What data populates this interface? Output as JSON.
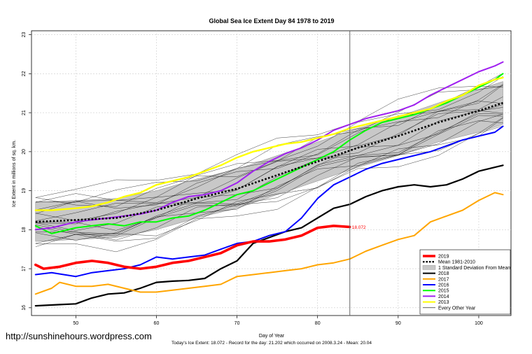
{
  "watermark": "http://sunshinehours.wordpress.com",
  "chart_data": {
    "type": "line",
    "title": "Global Sea Ice Extent Day 84 1978 to 2019",
    "xlabel": "Day of Year",
    "ylabel": "Ice Extent in millions of sq. km.",
    "subtitle": "Today's Ice Extent: 18.072  - Record for the day: 21.202 which occurred on 2008.3.24  - Mean: 20.04",
    "xlim": [
      44.5,
      104
    ],
    "ylim": [
      15.8,
      23.1
    ],
    "xticks": [
      50,
      60,
      70,
      80,
      90,
      100
    ],
    "yticks": [
      16,
      17,
      18,
      19,
      20,
      21,
      22,
      23
    ],
    "grid": true,
    "today_line_x": 84,
    "annotation": {
      "x": 84,
      "y": 18.07,
      "text": "18.072",
      "color": "#ff0000"
    },
    "legend_position": "bottom-right",
    "legend": [
      {
        "label": "2019",
        "color": "#ff0000",
        "style": "thick"
      },
      {
        "label": "Mean 1981-2010",
        "color": "#000000",
        "style": "dotted"
      },
      {
        "label": "1 Standard Deviation From Mean",
        "color": "#c8c8c8",
        "style": "band"
      },
      {
        "label": "2018",
        "color": "#000000",
        "style": "solid"
      },
      {
        "label": "2017",
        "color": "#ffa500",
        "style": "solid"
      },
      {
        "label": "2016",
        "color": "#0000ff",
        "style": "solid"
      },
      {
        "label": "2015",
        "color": "#00ff00",
        "style": "solid"
      },
      {
        "label": "2014",
        "color": "#a020f0",
        "style": "solid"
      },
      {
        "label": "2013",
        "color": "#ffff00",
        "style": "solid"
      },
      {
        "label": "Every Other Year",
        "color": "#000000",
        "style": "thin"
      }
    ],
    "mean": {
      "x": [
        45,
        50,
        55,
        60,
        65,
        70,
        75,
        80,
        85,
        90,
        95,
        100,
        103
      ],
      "y": [
        18.2,
        18.25,
        18.3,
        18.5,
        18.8,
        19.05,
        19.4,
        19.75,
        20.1,
        20.4,
        20.75,
        21.05,
        21.25
      ]
    },
    "std_band": {
      "x": [
        45,
        50,
        55,
        60,
        65,
        70,
        75,
        80,
        85,
        90,
        95,
        100,
        103
      ],
      "upper": [
        18.7,
        18.75,
        18.8,
        19.0,
        19.3,
        19.55,
        19.9,
        20.25,
        20.6,
        20.9,
        21.25,
        21.6,
        21.8
      ],
      "lower": [
        17.7,
        17.75,
        17.8,
        18.0,
        18.3,
        18.55,
        18.9,
        19.25,
        19.6,
        19.9,
        20.25,
        20.5,
        20.7
      ]
    },
    "series": [
      {
        "name": "2018",
        "color": "#000000",
        "width": 2.2,
        "x": [
          45,
          48,
          50,
          52,
          54,
          56,
          58,
          60,
          62,
          64,
          66,
          68,
          70,
          72,
          74,
          76,
          78,
          80,
          82,
          84,
          86,
          88,
          90,
          92,
          94,
          96,
          98,
          100,
          102,
          103
        ],
        "y": [
          16.05,
          16.08,
          16.1,
          16.25,
          16.35,
          16.38,
          16.5,
          16.65,
          16.68,
          16.7,
          16.75,
          17.0,
          17.2,
          17.65,
          17.8,
          17.95,
          18.05,
          18.3,
          18.55,
          18.65,
          18.85,
          19.0,
          19.1,
          19.15,
          19.1,
          19.15,
          19.3,
          19.5,
          19.6,
          19.65
        ]
      },
      {
        "name": "2017",
        "color": "#ffa500",
        "width": 2.0,
        "x": [
          45,
          47,
          48,
          50,
          52,
          54,
          56,
          58,
          60,
          62,
          64,
          66,
          68,
          70,
          72,
          74,
          76,
          78,
          80,
          82,
          84,
          86,
          88,
          90,
          92,
          94,
          96,
          98,
          100,
          102,
          103
        ],
        "y": [
          16.35,
          16.5,
          16.65,
          16.55,
          16.55,
          16.6,
          16.5,
          16.4,
          16.4,
          16.45,
          16.5,
          16.55,
          16.6,
          16.8,
          16.85,
          16.9,
          16.95,
          17.0,
          17.1,
          17.15,
          17.25,
          17.45,
          17.6,
          17.75,
          17.85,
          18.2,
          18.35,
          18.5,
          18.75,
          18.95,
          18.9
        ]
      },
      {
        "name": "2016",
        "color": "#0000ff",
        "width": 2.0,
        "x": [
          45,
          47,
          50,
          52,
          54,
          56,
          58,
          60,
          62,
          64,
          66,
          68,
          70,
          72,
          74,
          76,
          78,
          80,
          82,
          84,
          86,
          88,
          90,
          92,
          94,
          96,
          98,
          100,
          102,
          103
        ],
        "y": [
          16.85,
          16.9,
          16.8,
          16.9,
          16.95,
          17.0,
          17.1,
          17.3,
          17.25,
          17.3,
          17.35,
          17.5,
          17.65,
          17.7,
          17.85,
          17.95,
          18.3,
          18.8,
          19.15,
          19.35,
          19.55,
          19.7,
          19.8,
          19.9,
          20.0,
          20.15,
          20.3,
          20.4,
          20.5,
          20.65
        ]
      },
      {
        "name": "2015",
        "color": "#00ff00",
        "width": 2.0,
        "x": [
          45,
          47,
          50,
          52,
          54,
          56,
          58,
          60,
          62,
          64,
          66,
          68,
          70,
          72,
          74,
          76,
          78,
          80,
          82,
          84,
          86,
          88,
          90,
          92,
          94,
          96,
          98,
          100,
          102,
          103
        ],
        "y": [
          18.1,
          17.9,
          18.05,
          18.1,
          18.15,
          18.1,
          18.2,
          18.2,
          18.3,
          18.35,
          18.5,
          18.7,
          18.9,
          19.0,
          19.2,
          19.4,
          19.6,
          19.8,
          20.0,
          20.3,
          20.55,
          20.75,
          20.85,
          20.95,
          21.1,
          21.25,
          21.45,
          21.65,
          21.85,
          22.0
        ]
      },
      {
        "name": "2014",
        "color": "#a020f0",
        "width": 2.0,
        "x": [
          45,
          47,
          50,
          52,
          54,
          56,
          58,
          60,
          62,
          64,
          66,
          68,
          70,
          72,
          74,
          76,
          78,
          80,
          82,
          84,
          86,
          88,
          90,
          92,
          94,
          96,
          98,
          100,
          102,
          103
        ],
        "y": [
          18.0,
          18.05,
          18.2,
          18.25,
          18.3,
          18.35,
          18.4,
          18.5,
          18.7,
          18.85,
          18.9,
          19.0,
          19.2,
          19.5,
          19.75,
          19.95,
          20.1,
          20.3,
          20.55,
          20.7,
          20.85,
          20.95,
          21.05,
          21.2,
          21.45,
          21.65,
          21.85,
          22.05,
          22.2,
          22.3
        ]
      },
      {
        "name": "2013",
        "color": "#ffff00",
        "width": 2.4,
        "x": [
          45,
          47,
          50,
          52,
          54,
          56,
          58,
          60,
          62,
          64,
          66,
          68,
          70,
          72,
          74,
          76,
          78,
          80,
          82,
          84,
          86,
          88,
          90,
          92,
          94,
          96,
          98,
          100,
          102,
          103
        ],
        "y": [
          18.5,
          18.5,
          18.55,
          18.6,
          18.7,
          18.85,
          18.95,
          19.15,
          19.25,
          19.35,
          19.5,
          19.65,
          19.85,
          20.0,
          20.1,
          20.2,
          20.25,
          20.35,
          20.45,
          20.6,
          20.7,
          20.8,
          20.9,
          21.0,
          21.1,
          21.3,
          21.45,
          21.7,
          21.85,
          21.9
        ]
      },
      {
        "name": "2019",
        "color": "#ff0000",
        "width": 3.6,
        "x": [
          45,
          46,
          48,
          50,
          52,
          54,
          56,
          58,
          60,
          62,
          64,
          66,
          68,
          70,
          72,
          74,
          76,
          78,
          80,
          82,
          84
        ],
        "y": [
          17.1,
          17.0,
          17.05,
          17.15,
          17.2,
          17.15,
          17.05,
          17.0,
          17.05,
          17.15,
          17.2,
          17.3,
          17.4,
          17.6,
          17.7,
          17.7,
          17.75,
          17.85,
          18.05,
          18.1,
          18.07
        ]
      }
    ],
    "other_years": {
      "x": [
        45,
        50,
        55,
        60,
        65,
        70,
        75,
        80,
        85,
        90,
        95,
        100,
        103
      ],
      "offsets": [
        -0.55,
        -0.4,
        -0.25,
        -0.1,
        0.05,
        0.2,
        0.35,
        0.5,
        -0.7,
        -0.3,
        0.15,
        0.6,
        0.8,
        -0.5,
        0.3,
        -0.15,
        0.45,
        -0.35
      ]
    }
  }
}
